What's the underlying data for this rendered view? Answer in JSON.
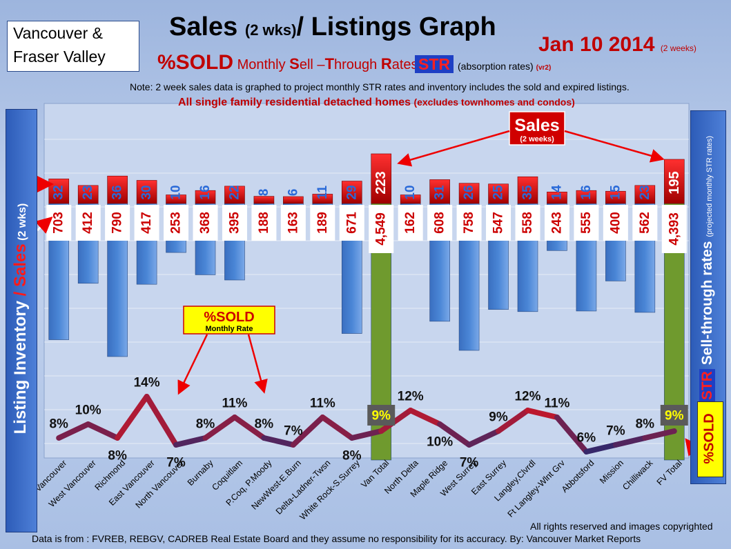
{
  "region": [
    "Vancouver &",
    "Fraser Valley"
  ],
  "title": {
    "main": "Sales ",
    "paren": "(2 wks)",
    "rest": "/ Listings Graph"
  },
  "date": {
    "main": "Jan 10 2014 ",
    "small": "(2 weeks)"
  },
  "sold_line": {
    "pct": "%SOLD",
    "monthly": " Monthly ",
    "s": "S",
    "ell": "ell –",
    "t": "T",
    "hrough": "hrough ",
    "r": "R",
    "ates": "ates"
  },
  "str_badge": "STR",
  "str_note": {
    "main": "(absorption rates) ",
    "ver": "(vr2)"
  },
  "note": "Note: 2 week sales data is graphed to project monthly STR rates and inventory includes the sold and expired listings.",
  "subnote": {
    "main": "All single family residential detached homes ",
    "small": "(excludes townhomes and condos)"
  },
  "left_label": {
    "a": "Listing Inventory ",
    "slash": "/ ",
    "sales": "Sales",
    "wks": " (2 wks)"
  },
  "right_label": {
    "str": "STR",
    "main": " Sell-through rates ",
    "small": "(projected monthly STR rates)"
  },
  "right_sold": "%SOLD",
  "callouts": {
    "sales_title": "Sales",
    "sales_sub": "(2 weeks)",
    "sold_title": "%SOLD",
    "sold_sub": "Monthly Rate"
  },
  "footer": {
    "rights": "All rights reserved and  images copyrighted",
    "source": "Data is  from : FVREB, REBGV, CADREB Real Estate Board and they assume no responsibility  for its accuracy. By: Vancouver Market Reports"
  },
  "colors": {
    "listing_bar": "#4a86d6",
    "total_bar": "#6f9a2e",
    "sales_bar": "#d40000",
    "sold_line": "#b01020",
    "sold_line_hot": "#ff1010",
    "sold_line_cool": "#2a2a70"
  },
  "chart_data": {
    "type": "bar",
    "categories": [
      "Vancouver",
      "West Vancouver",
      "Richmond",
      "East Vancouver",
      "North Vancouver",
      "Burnaby",
      "Coquitlam",
      "P.Coq, P.Moody",
      "NewWest-E.Burn",
      "Delta-Ladner-Twsn",
      "White Rock-S.Surrey",
      "Van Total",
      "North Delta",
      "Maple Ridge",
      "West Surrey",
      "East Surrey",
      "Langley,Clvrdl",
      "Ft Langley-Wlnt Grv",
      "Abbotsford",
      "Mission",
      "Chilliwack",
      "FV Total"
    ],
    "series": [
      {
        "values": [
          703,
          412,
          790,
          417,
          253,
          368,
          395,
          188,
          163,
          189,
          671,
          4549,
          162,
          608,
          758,
          547,
          558,
          243,
          555,
          400,
          562,
          4393
        ]
      },
      {
        "values": [
          32,
          23,
          36,
          30,
          10,
          16,
          22,
          8,
          6,
          11,
          29,
          223,
          10,
          31,
          26,
          25,
          35,
          14,
          16,
          15,
          23,
          195
        ]
      },
      {
        "values": [
          8,
          10,
          8,
          14,
          7,
          8,
          11,
          8,
          7,
          11,
          8,
          9,
          12,
          10,
          7,
          9,
          12,
          11,
          6,
          7,
          8,
          9
        ]
      }
    ],
    "value_labels": {
      "listings": [
        "703",
        "412",
        "790",
        "417",
        "253",
        "368",
        "395",
        "188",
        "163",
        "189",
        "671",
        "4,549",
        "162",
        "608",
        "758",
        "547",
        "558",
        "243",
        "555",
        "400",
        "562",
        "4,393"
      ],
      "sales": [
        "32",
        "23",
        "36",
        "30",
        "10",
        "16",
        "22",
        "8",
        "6",
        "11",
        "29",
        "223",
        "10",
        "31",
        "26",
        "25",
        "35",
        "14",
        "16",
        "15",
        "23",
        "195"
      ],
      "sold": [
        "8%",
        "10%",
        "8%",
        "14%",
        "7%",
        "8%",
        "11%",
        "8%",
        "7%",
        "11%",
        "8%",
        "9%",
        "12%",
        "10%",
        "7%",
        "9%",
        "12%",
        "11%",
        "6%",
        "7%",
        "8%",
        "9%"
      ]
    },
    "total_indices": [
      11,
      21
    ],
    "grid": true
  }
}
